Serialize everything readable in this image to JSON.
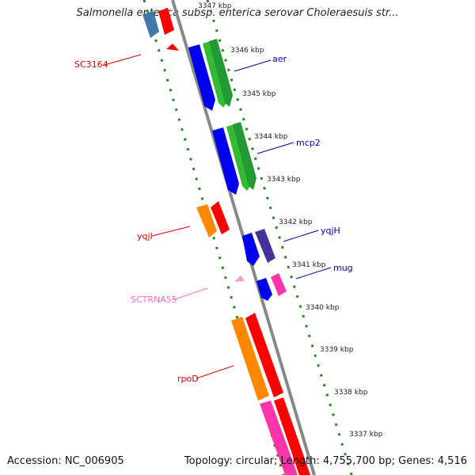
{
  "title": "Salmonella enterica subsp. enterica serovar Choleraesuis str...",
  "footer": {
    "accession": "Accession: NC_006905",
    "topology": "Topology: circular; Length: 4,755,700 bp; Genes: 4,516"
  },
  "ticks": [
    "3347 kbp",
    "3346 kbp",
    "3345 kbp",
    "3344 kbp",
    "3343 kbp",
    "3342 kbp",
    "3341 kbp",
    "3340 kbp",
    "3339 kbp",
    "3338 kbp",
    "3337 kbp"
  ],
  "gene_labels": [
    {
      "name": "SC3164",
      "color": "#dd0000"
    },
    {
      "name": "aer",
      "color": "#0000aa"
    },
    {
      "name": "mcp2",
      "color": "#0000aa"
    },
    {
      "name": "yqjI",
      "color": "#dd0000"
    },
    {
      "name": "yqjH",
      "color": "#0000aa"
    },
    {
      "name": "mug",
      "color": "#0000aa"
    },
    {
      "name": "SCTRNA55",
      "color": "#ff66cc"
    },
    {
      "name": "rpoD",
      "color": "#dd0000"
    }
  ],
  "colors": {
    "backbone": "#888888",
    "dotted_track": "#228822",
    "blue": "#0000ee",
    "green": "#33bb33",
    "red": "#ff0000",
    "orange": "#ff8800",
    "pink": "#ff33aa",
    "purple": "#443399",
    "steel": "#4477aa"
  }
}
